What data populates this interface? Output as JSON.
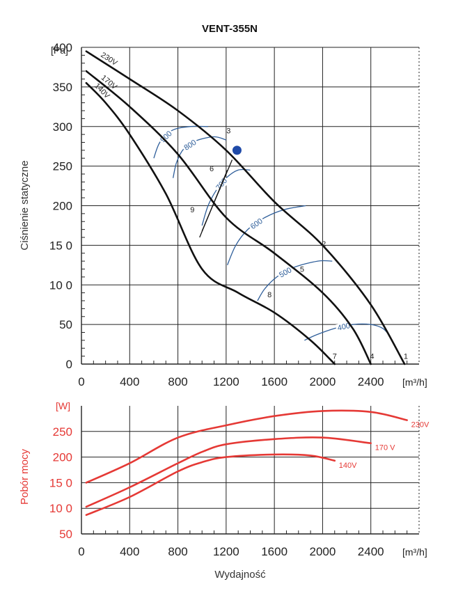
{
  "colors": {
    "curve": "#111111",
    "rpm": "#2e5e9a",
    "power": "#e53935",
    "grid": "#222222",
    "point": "#1f4aa8"
  },
  "chart_data": [
    {
      "type": "line",
      "title": "VENT-355N",
      "xlabel": "",
      "ylabel": "Ciśnienie statyczne",
      "y_unit": "[Pa]",
      "x_unit": "[m³/h]",
      "xlim": [
        0,
        2800
      ],
      "ylim": [
        0,
        400
      ],
      "x_ticks": [
        "0",
        "400",
        "800",
        "1200",
        "1600",
        "2000",
        "2400"
      ],
      "y_ticks": [
        "0",
        "50",
        "10 0",
        "15 0",
        "200",
        "250",
        "300",
        "350",
        "400"
      ],
      "series": [
        {
          "name": "230V",
          "x": [
            40,
            400,
            800,
            1200,
            1600,
            2000,
            2400,
            2680
          ],
          "y": [
            395,
            360,
            320,
            270,
            205,
            150,
            75,
            0
          ]
        },
        {
          "name": "170V",
          "x": [
            40,
            400,
            800,
            1200,
            1600,
            2000,
            2250,
            2400
          ],
          "y": [
            370,
            325,
            265,
            185,
            140,
            90,
            45,
            0
          ]
        },
        {
          "name": "140V",
          "x": [
            40,
            200,
            400,
            700,
            1000,
            1300,
            1600,
            1900,
            2100
          ],
          "y": [
            355,
            330,
            290,
            215,
            120,
            90,
            65,
            30,
            0
          ]
        }
      ],
      "rpm_lines": [
        {
          "label": "900",
          "x": [
            600,
            650,
            750,
            900,
            1050
          ],
          "y": [
            260,
            280,
            295,
            300,
            300
          ]
        },
        {
          "label": "800",
          "x": [
            760,
            790,
            850,
            950,
            1100,
            1200
          ],
          "y": [
            235,
            255,
            272,
            282,
            287,
            283
          ]
        },
        {
          "label": "700",
          "x": [
            1000,
            1050,
            1120,
            1200,
            1300,
            1400
          ],
          "y": [
            175,
            200,
            220,
            235,
            245,
            245
          ]
        },
        {
          "label": "600",
          "x": [
            1210,
            1280,
            1380,
            1520,
            1680,
            1860
          ],
          "y": [
            125,
            150,
            170,
            185,
            195,
            200
          ]
        },
        {
          "label": "500",
          "x": [
            1460,
            1520,
            1620,
            1760,
            1960,
            2080
          ],
          "y": [
            80,
            95,
            110,
            122,
            130,
            130
          ]
        },
        {
          "label": "400",
          "x": [
            1850,
            1950,
            2100,
            2250,
            2400,
            2500,
            2560
          ],
          "y": [
            30,
            37,
            45,
            50,
            50,
            45,
            35
          ]
        }
      ],
      "operating_lines": [
        {
          "x": [
            980,
            1210
          ],
          "y": [
            160,
            245
          ]
        },
        {
          "x": [
            1000,
            1250
          ],
          "y": [
            168,
            258
          ]
        }
      ],
      "operating_point": {
        "x": 1290,
        "y": 270
      },
      "point_labels": [
        {
          "label": "1",
          "x": 2690,
          "y": 10
        },
        {
          "label": "2",
          "x": 2010,
          "y": 152
        },
        {
          "label": "3",
          "x": 1220,
          "y": 295
        },
        {
          "label": "4",
          "x": 2410,
          "y": 10
        },
        {
          "label": "5",
          "x": 1830,
          "y": 120
        },
        {
          "label": "6",
          "x": 1080,
          "y": 247
        },
        {
          "label": "7",
          "x": 2100,
          "y": 10
        },
        {
          "label": "8",
          "x": 1560,
          "y": 88
        },
        {
          "label": "9",
          "x": 920,
          "y": 195
        }
      ]
    },
    {
      "type": "line",
      "title": "",
      "xlabel": "Wydajność",
      "ylabel": "Pobór mocy",
      "y_unit": "[W]",
      "x_unit": "[m³/h]",
      "xlim": [
        0,
        2800
      ],
      "ylim": [
        50,
        300
      ],
      "x_ticks": [
        "0",
        "400",
        "800",
        "1200",
        "1600",
        "2000",
        "2400"
      ],
      "y_ticks": [
        "50",
        "10 0",
        "15 0",
        "200",
        "250"
      ],
      "series": [
        {
          "name": "230V",
          "x": [
            40,
            400,
            800,
            1200,
            1600,
            2000,
            2400,
            2700
          ],
          "y": [
            150,
            188,
            238,
            262,
            280,
            290,
            288,
            272
          ]
        },
        {
          "name": "170 V",
          "x": [
            40,
            400,
            800,
            1000,
            1200,
            1600,
            2000,
            2400
          ],
          "y": [
            103,
            141,
            188,
            210,
            225,
            235,
            238,
            227
          ]
        },
        {
          "name": "140V",
          "x": [
            40,
            400,
            800,
            1000,
            1200,
            1600,
            1900,
            2100
          ],
          "y": [
            87,
            122,
            172,
            190,
            200,
            205,
            203,
            193
          ]
        }
      ]
    }
  ]
}
